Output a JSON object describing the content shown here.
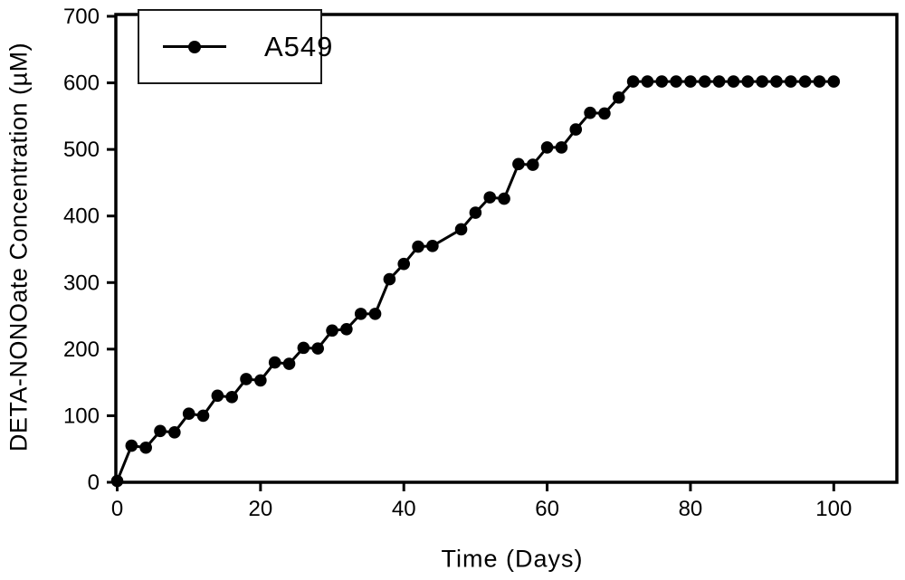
{
  "chart_data": {
    "type": "line",
    "title": "",
    "xlabel": "Time (Days)",
    "ylabel": "DETA-NONOate Concentration (µM)",
    "xlim": [
      0,
      109
    ],
    "ylim": [
      0,
      700
    ],
    "xticks": [
      0,
      20,
      40,
      60,
      80,
      100
    ],
    "yticks": [
      0,
      100,
      200,
      300,
      400,
      500,
      600,
      700
    ],
    "grid": false,
    "legend_position": "top-left",
    "line_color": "#000000",
    "background_color": "#ffffff",
    "marker": "filled-circle",
    "series": [
      {
        "name": "A549",
        "x": [
          0,
          2,
          4,
          6,
          8,
          10,
          12,
          14,
          16,
          18,
          20,
          22,
          24,
          26,
          28,
          30,
          32,
          34,
          36,
          38,
          40,
          42,
          44,
          48,
          50,
          52,
          54,
          56,
          58,
          60,
          62,
          64,
          66,
          68,
          70,
          72,
          74,
          76,
          78,
          80,
          82,
          84,
          86,
          88,
          90,
          92,
          94,
          96,
          98,
          100
        ],
        "y": [
          2,
          55,
          52,
          77,
          75,
          103,
          100,
          130,
          128,
          155,
          153,
          180,
          178,
          202,
          201,
          228,
          230,
          253,
          253,
          305,
          328,
          354,
          355,
          380,
          405,
          428,
          426,
          478,
          477,
          503,
          503,
          530,
          555,
          554,
          578,
          602,
          602,
          602,
          602,
          602,
          602,
          602,
          602,
          602,
          602,
          602,
          602,
          602,
          602,
          602
        ]
      }
    ]
  }
}
